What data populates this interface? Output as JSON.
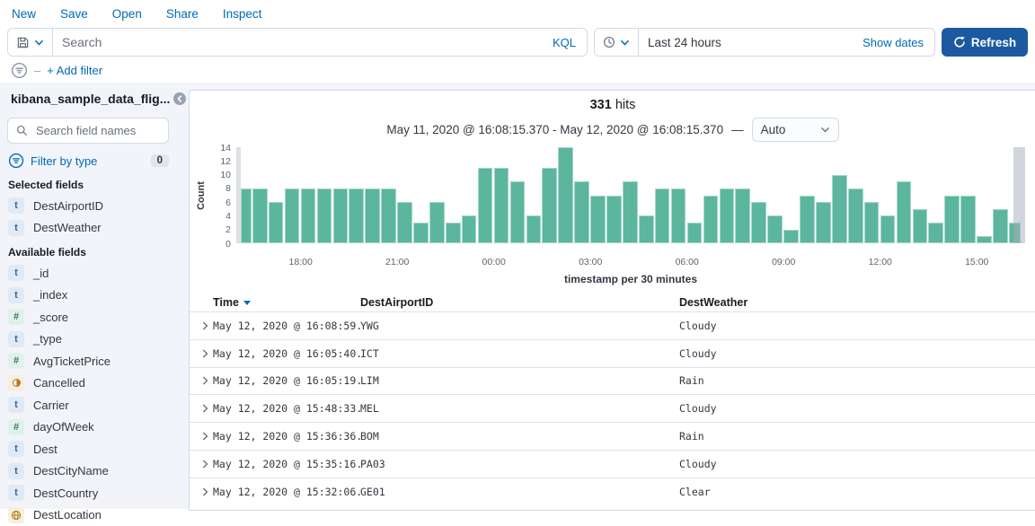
{
  "topnav": {
    "items": [
      "New",
      "Save",
      "Open",
      "Share",
      "Inspect"
    ]
  },
  "querybar": {
    "search_placeholder": "Search",
    "kql_label": "KQL",
    "time_value": "Last 24 hours",
    "show_dates_label": "Show dates",
    "refresh_label": "Refresh"
  },
  "filterbar": {
    "add_filter_label": "+ Add filter"
  },
  "sidebar": {
    "index_pattern": "kibana_sample_data_flig...",
    "field_search_placeholder": "Search field names",
    "filter_by_type_label": "Filter by type",
    "filter_count_badge": "0",
    "selected_fields_label": "Selected fields",
    "available_fields_label": "Available fields",
    "selected_fields": [
      {
        "name": "DestAirportID",
        "type": "string"
      },
      {
        "name": "DestWeather",
        "type": "string"
      }
    ],
    "available_fields": [
      {
        "name": "_id",
        "type": "string"
      },
      {
        "name": "_index",
        "type": "string"
      },
      {
        "name": "_score",
        "type": "number"
      },
      {
        "name": "_type",
        "type": "string"
      },
      {
        "name": "AvgTicketPrice",
        "type": "number"
      },
      {
        "name": "Cancelled",
        "type": "boolean"
      },
      {
        "name": "Carrier",
        "type": "string"
      },
      {
        "name": "dayOfWeek",
        "type": "number"
      },
      {
        "name": "Dest",
        "type": "string"
      },
      {
        "name": "DestCityName",
        "type": "string"
      },
      {
        "name": "DestCountry",
        "type": "string"
      },
      {
        "name": "DestLocation",
        "type": "geo_point"
      }
    ]
  },
  "main": {
    "hits_count": "331",
    "hits_label": "hits",
    "time_range": "May 11, 2020 @ 16:08:15.370 - May 12, 2020 @ 16:08:15.370",
    "range_separator": "—",
    "interval_value": "Auto"
  },
  "chart_data": {
    "type": "bar",
    "title": "331 hits",
    "xlabel": "timestamp per 30 minutes",
    "ylabel": "Count",
    "ylim": [
      0,
      14
    ],
    "yticks": [
      0,
      2,
      4,
      6,
      8,
      10,
      12,
      14
    ],
    "x_tick_labels": [
      "18:00",
      "21:00",
      "00:00",
      "03:00",
      "06:00",
      "09:00",
      "12:00",
      "15:00"
    ],
    "x_tick_bucket_index": [
      4,
      10,
      16,
      22,
      28,
      34,
      40,
      46
    ],
    "bucket_interval": "30m",
    "values": [
      8,
      8,
      6,
      8,
      8,
      8,
      8,
      8,
      8,
      8,
      6,
      3,
      6,
      3,
      4,
      11,
      11,
      9,
      4,
      11,
      14,
      9,
      7,
      7,
      9,
      4,
      8,
      8,
      3,
      7,
      8,
      8,
      6,
      4,
      2,
      7,
      6,
      10,
      8,
      6,
      4,
      9,
      5,
      3,
      7,
      7,
      1,
      5,
      3
    ],
    "partial_buckets": {
      "first": true,
      "last": true
    },
    "bar_color": "#54B399",
    "partial_overlay_color": "#DDE0E6",
    "legend": "none",
    "grid": false
  },
  "table": {
    "columns": [
      "Time",
      "DestAirportID",
      "DestWeather"
    ],
    "sorted_column": "Time",
    "sort_direction": "desc",
    "rows": [
      {
        "time": "May 12, 2020 @ 16:08:59.000",
        "dest_airport_id": "YWG",
        "dest_weather": "Cloudy"
      },
      {
        "time": "May 12, 2020 @ 16:05:40.000",
        "dest_airport_id": "ICT",
        "dest_weather": "Cloudy"
      },
      {
        "time": "May 12, 2020 @ 16:05:19.000",
        "dest_airport_id": "LIM",
        "dest_weather": "Rain"
      },
      {
        "time": "May 12, 2020 @ 15:48:33.000",
        "dest_airport_id": "MEL",
        "dest_weather": "Cloudy"
      },
      {
        "time": "May 12, 2020 @ 15:36:36.000",
        "dest_airport_id": "BOM",
        "dest_weather": "Rain"
      },
      {
        "time": "May 12, 2020 @ 15:35:16.000",
        "dest_airport_id": "PA03",
        "dest_weather": "Cloudy"
      },
      {
        "time": "May 12, 2020 @ 15:32:06.000",
        "dest_airport_id": "GE01",
        "dest_weather": "Clear"
      }
    ]
  },
  "icons": {
    "saved_query": "floppy-disk",
    "time_picker": "clock",
    "refresh": "circular-arrow",
    "field_search": "magnifier",
    "filter": "filter-circle",
    "collapse_sidebar": "chevron-left-circle",
    "row_expand": "chevron-right",
    "dropdown": "chevron-down"
  },
  "colors": {
    "link": "#006BB4",
    "refresh_button": "#1B5AA0",
    "bar": "#54B399",
    "sidebar_bg": "#F2F4F9",
    "border": "#D3DAE6",
    "text": "#343741"
  }
}
